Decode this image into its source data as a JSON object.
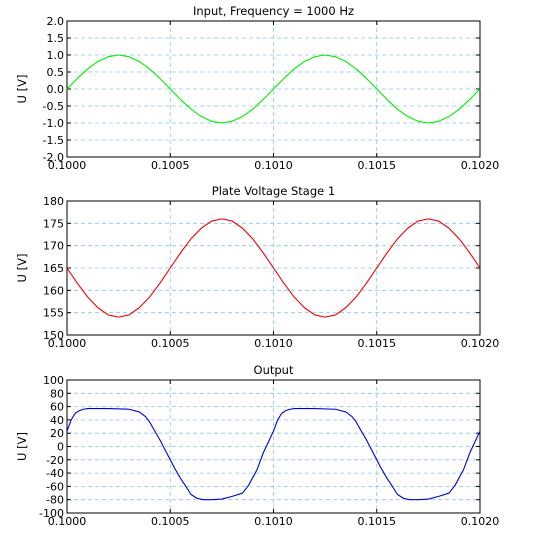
{
  "chart_data": [
    {
      "type": "line",
      "title": "Input, Frequency = 1000 Hz",
      "ylabel": "U [V]",
      "xlim": [
        0.1,
        0.102
      ],
      "ylim": [
        -2.0,
        2.0
      ],
      "grid": true,
      "x_ticks": [
        "0.1000",
        "0.1005",
        "0.1010",
        "0.1015",
        "0.1020"
      ],
      "y_ticks": [
        "2.0",
        "1.5",
        "1.0",
        "0.5",
        "0.0",
        "-0.5",
        "-1.0",
        "-1.5",
        "-2.0"
      ],
      "y_tick_values": [
        2.0,
        1.5,
        1.0,
        0.5,
        0.0,
        -0.5,
        -1.0,
        -1.5,
        -2.0
      ],
      "series": [
        {
          "color": "#00ee00",
          "x": [
            0.1,
            0.10005,
            0.1001,
            0.10015,
            0.1002,
            0.10025,
            0.1003,
            0.10035,
            0.1004,
            0.10045,
            0.1005,
            0.10055,
            0.1006,
            0.10065,
            0.1007,
            0.10075,
            0.1008,
            0.10085,
            0.1009,
            0.10095,
            0.101,
            0.10105,
            0.1011,
            0.10115,
            0.1012,
            0.10125,
            0.1013,
            0.10135,
            0.1014,
            0.10145,
            0.1015,
            0.10155,
            0.1016,
            0.10165,
            0.1017,
            0.10175,
            0.1018,
            0.10185,
            0.1019,
            0.10195,
            0.102
          ],
          "values": [
            0.0,
            0.31,
            0.59,
            0.81,
            0.95,
            1.0,
            0.95,
            0.81,
            0.59,
            0.31,
            0.0,
            -0.31,
            -0.59,
            -0.81,
            -0.95,
            -1.0,
            -0.95,
            -0.81,
            -0.59,
            -0.31,
            0.0,
            0.31,
            0.59,
            0.81,
            0.95,
            1.0,
            0.95,
            0.81,
            0.59,
            0.31,
            0.0,
            -0.31,
            -0.59,
            -0.81,
            -0.95,
            -1.0,
            -0.95,
            -0.81,
            -0.59,
            -0.31,
            0.0
          ]
        }
      ]
    },
    {
      "type": "line",
      "title": "Plate Voltage Stage 1",
      "ylabel": "U [V]",
      "xlim": [
        0.1,
        0.102
      ],
      "ylim": [
        150,
        180
      ],
      "grid": true,
      "x_ticks": [
        "0.1000",
        "0.1005",
        "0.1010",
        "0.1015",
        "0.1020"
      ],
      "y_ticks": [
        "180",
        "175",
        "170",
        "165",
        "160",
        "155",
        "150"
      ],
      "y_tick_values": [
        180,
        175,
        170,
        165,
        160,
        155,
        150
      ],
      "series": [
        {
          "color": "#ee0000",
          "x": [
            0.1,
            0.10005,
            0.1001,
            0.10015,
            0.1002,
            0.10025,
            0.1003,
            0.10035,
            0.1004,
            0.10045,
            0.1005,
            0.10055,
            0.1006,
            0.10065,
            0.1007,
            0.10075,
            0.1008,
            0.10085,
            0.1009,
            0.10095,
            0.101,
            0.10105,
            0.1011,
            0.10115,
            0.1012,
            0.10125,
            0.1013,
            0.10135,
            0.1014,
            0.10145,
            0.1015,
            0.10155,
            0.1016,
            0.10165,
            0.1017,
            0.10175,
            0.1018,
            0.10185,
            0.1019,
            0.10195,
            0.102
          ],
          "values": [
            165.0,
            161.6,
            158.5,
            156.1,
            154.5,
            154.0,
            154.5,
            156.1,
            158.5,
            161.6,
            165.0,
            168.4,
            171.5,
            173.9,
            175.5,
            176.0,
            175.5,
            173.9,
            171.5,
            168.4,
            165.0,
            161.6,
            158.5,
            156.1,
            154.5,
            154.0,
            154.5,
            156.1,
            158.5,
            161.6,
            165.0,
            168.4,
            171.5,
            173.9,
            175.5,
            176.0,
            175.5,
            173.9,
            171.5,
            168.4,
            165.0
          ]
        }
      ]
    },
    {
      "type": "line",
      "title": "Output",
      "ylabel": "U [V]",
      "xlim": [
        0.1,
        0.102
      ],
      "ylim": [
        -100,
        100
      ],
      "grid": true,
      "x_ticks": [
        "0.1000",
        "0.1005",
        "0.1010",
        "0.1015",
        "0.1020"
      ],
      "y_ticks": [
        "100",
        "80",
        "60",
        "40",
        "20",
        "0",
        "-20",
        "-40",
        "-60",
        "-80",
        "-100"
      ],
      "y_tick_values": [
        100,
        80,
        60,
        40,
        20,
        0,
        -20,
        -40,
        -60,
        -80,
        -100
      ],
      "series": [
        {
          "color": "#0000dd",
          "x": [
            0.1,
            0.10002,
            0.10004,
            0.10006,
            0.10008,
            0.1001,
            0.10015,
            0.1002,
            0.1003,
            0.10035,
            0.10038,
            0.1004,
            0.10042,
            0.10045,
            0.10048,
            0.1005,
            0.10052,
            0.10055,
            0.10058,
            0.1006,
            0.10063,
            0.10066,
            0.1007,
            0.10075,
            0.1008,
            0.10085,
            0.10088,
            0.10092,
            0.10095,
            0.10098,
            0.101,
            0.10102,
            0.10104,
            0.10106,
            0.10108,
            0.1011,
            0.10115,
            0.1012,
            0.1013,
            0.10135,
            0.10138,
            0.1014,
            0.10142,
            0.10145,
            0.10148,
            0.1015,
            0.10152,
            0.10155,
            0.10158,
            0.1016,
            0.10163,
            0.10166,
            0.1017,
            0.10175,
            0.1018,
            0.10185,
            0.10188,
            0.10192,
            0.10195,
            0.10198,
            0.102
          ],
          "values": [
            23,
            40,
            50,
            54,
            56,
            57,
            57,
            57,
            56,
            52,
            45,
            37,
            26,
            10,
            -8,
            -20,
            -32,
            -48,
            -62,
            -72,
            -78,
            -80,
            -80,
            -79,
            -75,
            -70,
            -58,
            -35,
            -10,
            10,
            23,
            40,
            50,
            54,
            56,
            57,
            57,
            57,
            56,
            52,
            45,
            37,
            26,
            10,
            -8,
            -20,
            -32,
            -48,
            -62,
            -72,
            -78,
            -80,
            -80,
            -79,
            -75,
            -70,
            -58,
            -35,
            -10,
            10,
            23
          ]
        }
      ]
    }
  ]
}
